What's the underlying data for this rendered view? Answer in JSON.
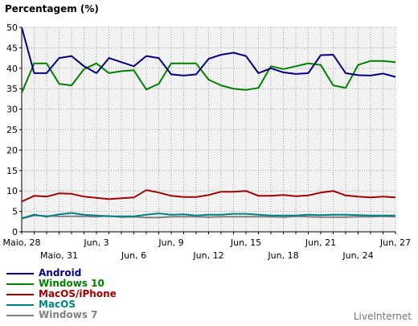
{
  "chart_data": {
    "type": "line",
    "ylabel": "Percentagem (%)",
    "ylim": [
      0,
      50
    ],
    "yticks": [
      0,
      5,
      10,
      15,
      20,
      25,
      30,
      35,
      40,
      45,
      50
    ],
    "grid": true,
    "legend_placement": "bottom-left",
    "x": [
      "Maio, 28",
      "Maio, 29",
      "Maio, 30",
      "Maio, 31",
      "Jun, 1",
      "Jun, 2",
      "Jun, 3",
      "Jun, 4",
      "Jun, 5",
      "Jun, 6",
      "Jun, 7",
      "Jun, 8",
      "Jun, 9",
      "Jun, 10",
      "Jun, 11",
      "Jun, 12",
      "Jun, 13",
      "Jun, 14",
      "Jun, 15",
      "Jun, 16",
      "Jun, 17",
      "Jun, 18",
      "Jun, 19",
      "Jun, 20",
      "Jun, 21",
      "Jun, 22",
      "Jun, 23",
      "Jun, 24",
      "Jun, 25",
      "Jun, 26",
      "Jun, 27"
    ],
    "xtick_labels_row1": [
      {
        "index": 0,
        "label": "Maio, 28"
      },
      {
        "index": 6,
        "label": "Jun, 3"
      },
      {
        "index": 12,
        "label": "Jun, 9"
      },
      {
        "index": 18,
        "label": "Jun, 15"
      },
      {
        "index": 24,
        "label": "Jun, 21"
      },
      {
        "index": 30,
        "label": "Jun, 27"
      }
    ],
    "xtick_labels_row2": [
      {
        "index": 3,
        "label": "Maio, 31"
      },
      {
        "index": 9,
        "label": "Jun, 6"
      },
      {
        "index": 15,
        "label": "Jun, 12"
      },
      {
        "index": 21,
        "label": "Jun, 18"
      },
      {
        "index": 27,
        "label": "Jun, 24"
      }
    ],
    "series": [
      {
        "name": "Android",
        "color": "#000080",
        "values": [
          50,
          38.8,
          38.8,
          42.5,
          43,
          40.5,
          38.8,
          42.5,
          41.5,
          40.5,
          43,
          42.5,
          38.5,
          38.2,
          38.5,
          42.3,
          43.3,
          43.8,
          43,
          38.8,
          40,
          39,
          38.6,
          38.8,
          43.2,
          43.3,
          38.8,
          38.3,
          38.2,
          38.7,
          37.9
        ]
      },
      {
        "name": "Windows 10",
        "color": "#008000",
        "values": [
          34,
          41.2,
          41.2,
          36.2,
          35.8,
          39.8,
          41.2,
          38.8,
          39.3,
          39.5,
          34.8,
          36.2,
          41.2,
          41.2,
          41.2,
          37.2,
          35.8,
          35,
          34.7,
          35.2,
          40.5,
          39.8,
          40.5,
          41.2,
          40.8,
          35.8,
          35.2,
          40.8,
          41.8,
          41.8,
          41.5
        ]
      },
      {
        "name": "MacOS/iPhone",
        "color": "#a00000",
        "values": [
          7.4,
          8.8,
          8.6,
          9.4,
          9.3,
          8.6,
          8.3,
          8,
          8.2,
          8.4,
          10.2,
          9.6,
          8.8,
          8.5,
          8.5,
          9,
          9.8,
          9.8,
          10,
          8.8,
          8.8,
          9,
          8.7,
          8.9,
          9.6,
          10,
          8.9,
          8.6,
          8.4,
          8.6,
          8.4
        ]
      },
      {
        "name": "MacOS",
        "color": "#008080",
        "values": [
          3.3,
          4.2,
          3.7,
          4.3,
          4.6,
          4.2,
          4,
          3.8,
          3.8,
          3.8,
          4.2,
          4.5,
          4.2,
          4.3,
          4,
          4.2,
          4.2,
          4.4,
          4.4,
          4.2,
          4,
          4,
          4,
          4.2,
          4.1,
          4.2,
          4.2,
          4.1,
          4,
          4,
          4
        ]
      },
      {
        "name": "Windows 7",
        "color": "#808080",
        "values": [
          3.2,
          4,
          3.9,
          3.8,
          3.8,
          3.8,
          3.7,
          3.9,
          3.6,
          3.7,
          3.5,
          3.5,
          3.7,
          3.7,
          3.7,
          3.6,
          3.7,
          3.7,
          3.7,
          3.7,
          3.7,
          3.6,
          3.8,
          3.7,
          3.6,
          3.6,
          3.6,
          3.7,
          3.7,
          3.8,
          3.7
        ]
      }
    ]
  },
  "brand": "LiveInternet"
}
